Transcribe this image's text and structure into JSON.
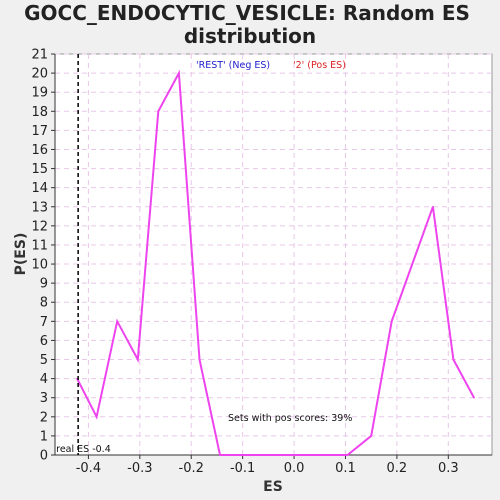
{
  "chart_data": {
    "type": "line",
    "title": "GOCC_ENDOCYTIC_VESICLE: Random ES distribution",
    "title_lines": [
      "GOCC_ENDOCYTIC_VESICLE: Random ES",
      "distribution"
    ],
    "xlabel": "ES",
    "ylabel": "P(ES)",
    "xlim": [
      -0.465,
      0.385
    ],
    "ylim": [
      0,
      21
    ],
    "x_ticks": [
      -0.4,
      -0.3,
      -0.2,
      -0.1,
      0.0,
      0.1,
      0.2,
      0.3
    ],
    "x_tick_labels": [
      "-0.4",
      "-0.3",
      "-0.2",
      "-0.1",
      "0.0",
      "0.1",
      "0.2",
      "0.3"
    ],
    "y_ticks": [
      0,
      1,
      2,
      3,
      4,
      5,
      6,
      7,
      8,
      9,
      10,
      11,
      12,
      13,
      14,
      15,
      16,
      17,
      18,
      19,
      20,
      21
    ],
    "grid": true,
    "series": [
      {
        "color": "#ee44ee",
        "x": [
          -0.422,
          -0.384,
          -0.344,
          -0.304,
          -0.264,
          -0.224,
          -0.184,
          -0.144,
          -0.104,
          -0.064,
          -0.024,
          0.016,
          0.056,
          0.104,
          0.15,
          0.19,
          0.23,
          0.27,
          0.31,
          0.35
        ],
        "y": [
          4,
          2,
          7,
          5,
          18,
          20,
          5,
          0,
          0,
          0,
          0,
          0,
          0,
          0,
          1,
          7,
          10,
          13,
          5,
          3
        ]
      }
    ],
    "legend": [
      {
        "label": "'REST' (Neg ES)",
        "color": "#2222cc"
      },
      {
        "label": "'2' (Pos ES)",
        "color": "#dd2222"
      }
    ],
    "legend_placement": "top-center",
    "vline": {
      "x": -0.42,
      "label": "real ES -0.4"
    },
    "annotation": "Sets with pos scores: 39%"
  }
}
